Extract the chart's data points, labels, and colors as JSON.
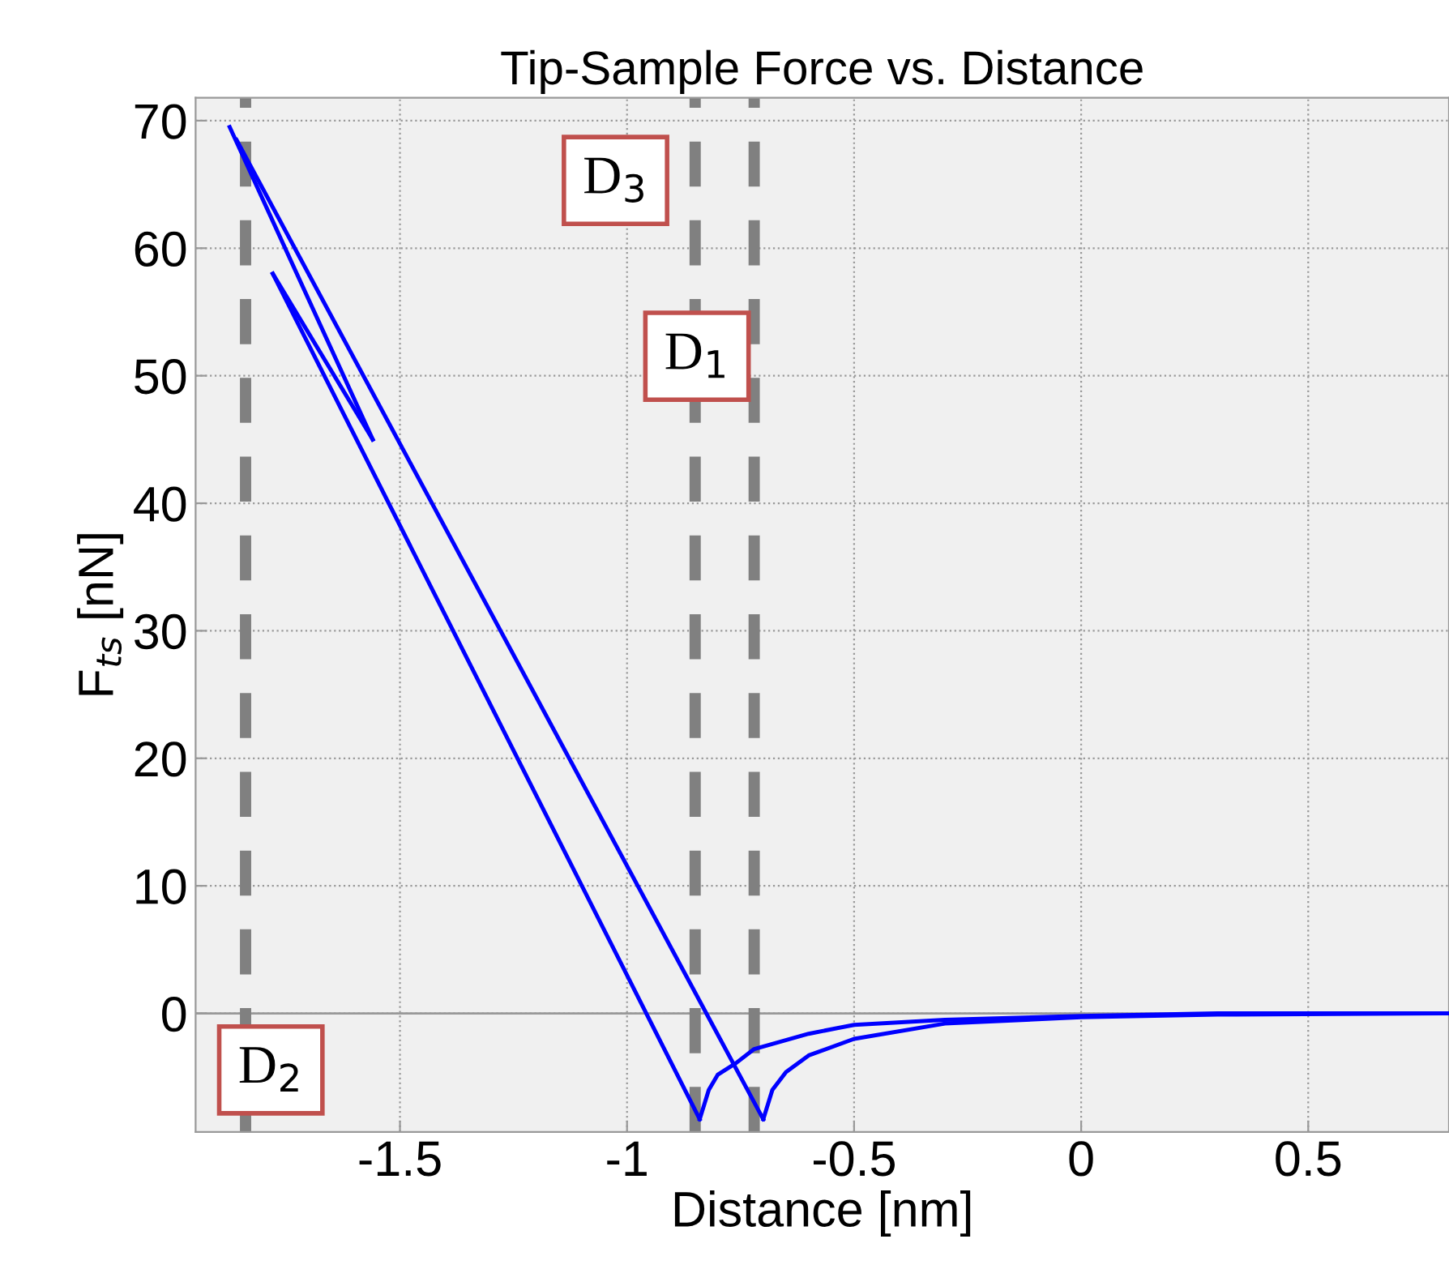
{
  "chart_data": {
    "type": "line",
    "title": "Tip-Sample Force vs. Distance",
    "xlabel": "Distance [nm]",
    "ylabel": "F$_{ts}$ [nN]",
    "series": [
      {
        "color": "#0000ff",
        "x": [
          -0.7,
          -0.68,
          -0.65,
          -0.6,
          -0.5,
          -0.3,
          0.0,
          0.3,
          0.81
        ],
        "values": [
          -8.3,
          -6,
          -4.6,
          -3.3,
          -2,
          -0.8,
          -0.3,
          -0.1,
          0
        ]
      },
      {
        "color": "#0000ff",
        "x": [
          -1.86,
          -0.7
        ],
        "values": [
          68.5,
          -8.3
        ]
      },
      {
        "color": "#0000ff",
        "x": [
          -1.875,
          -1.56
        ],
        "values": [
          69.5,
          45
        ]
      },
      {
        "color": "#0000ff",
        "x": [
          -1.78,
          -1.56
        ],
        "values": [
          58,
          45
        ]
      },
      {
        "color": "#0000ff",
        "x": [
          -1.78,
          -0.84
        ],
        "values": [
          58,
          -8.3
        ]
      },
      {
        "color": "#0000ff",
        "x": [
          -0.84,
          -0.82,
          -0.8,
          -0.76,
          -0.72,
          -0.6,
          -0.5,
          -0.3,
          0.0,
          0.3,
          0.81
        ],
        "values": [
          -8.3,
          -6,
          -4.8,
          -3.9,
          -2.8,
          -1.6,
          -0.9,
          -0.5,
          -0.2,
          0,
          0
        ]
      }
    ],
    "xlim": [
      -1.95,
      0.81
    ],
    "xticks": [
      -1.5,
      -1,
      -0.5,
      0,
      0.5
    ],
    "ylim": [
      -9.3,
      71.8
    ],
    "yticks": [
      0,
      10,
      20,
      30,
      40,
      50,
      60,
      70
    ],
    "grid": true,
    "line_style": "solid",
    "marker": "none",
    "ref_lines": [
      {
        "axis": "x",
        "value": -0.72,
        "label": "D$_{1}$",
        "color": "#808080",
        "line_style": "dashed"
      },
      {
        "axis": "x",
        "value": -1.84,
        "label": "D$_{2}$",
        "color": "#808080",
        "line_style": "dashed"
      },
      {
        "axis": "x",
        "value": -0.85,
        "label": "D$_{3}$",
        "color": "#808080",
        "line_style": "dashed"
      }
    ]
  }
}
